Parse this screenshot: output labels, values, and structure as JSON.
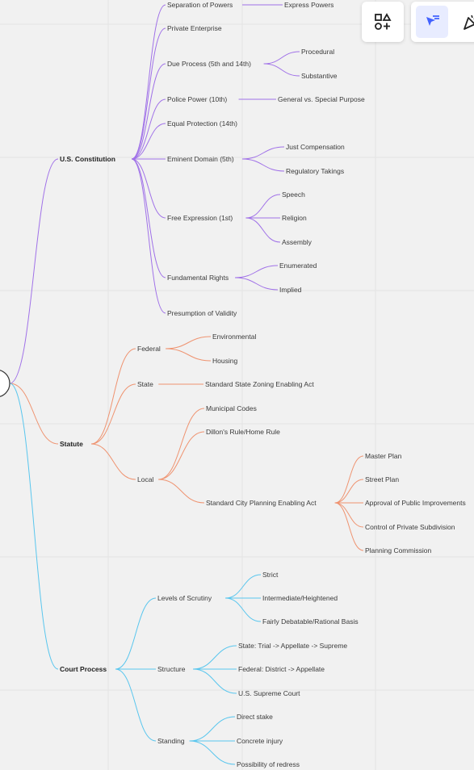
{
  "colors": {
    "constitution": "#a071e8",
    "statute": "#ef9370",
    "court": "#59c6ee",
    "accent": "#4262ff"
  },
  "toolbar": {
    "shapes_icon": "shapes-icon",
    "select_icon": "select-arrow-icon",
    "celebrate_icon": "party-popper-icon"
  },
  "mindmap": {
    "branches": [
      {
        "label": "U.S. Constitution",
        "children": [
          {
            "label": "Separation of Powers",
            "children": [
              "Express Powers"
            ]
          },
          {
            "label": "Private Enterprise",
            "children": []
          },
          {
            "label": "Due Process (5th and 14th)",
            "children": [
              "Procedural",
              "Substantive"
            ]
          },
          {
            "label": "Police Power (10th)",
            "children": [
              "General vs. Special Purpose"
            ]
          },
          {
            "label": "Equal Protection (14th)",
            "children": []
          },
          {
            "label": "Eminent Domain (5th)",
            "children": [
              "Just Compensation",
              "Regulatory Takings"
            ]
          },
          {
            "label": "Free Expression (1st)",
            "children": [
              "Speech",
              "Religion",
              "Assembly"
            ]
          },
          {
            "label": "Fundamental Rights",
            "children": [
              "Enumerated",
              "Implied"
            ]
          },
          {
            "label": "Presumption of Validity",
            "children": []
          }
        ]
      },
      {
        "label": "Statute",
        "children": [
          {
            "label": "Federal",
            "children": [
              "Environmental",
              "Housing"
            ]
          },
          {
            "label": "State",
            "children": [
              "Standard State Zoning Enabling Act"
            ]
          },
          {
            "label": "Local",
            "children": [
              {
                "label": "Municipal Codes",
                "children": []
              },
              {
                "label": "Dillon's Rule/Home Rule",
                "children": []
              },
              {
                "label": "Standard City Planning Enabling Act",
                "children": [
                  "Master Plan",
                  "Street Plan",
                  "Approval of Public Improvements",
                  "Control of Private Subdivision",
                  "Planning Commission"
                ]
              }
            ]
          }
        ]
      },
      {
        "label": "Court Process",
        "children": [
          {
            "label": "Levels of Scrutiny",
            "children": [
              "Strict",
              "Intermediate/Heightened",
              "Fairly Debatable/Rational Basis"
            ]
          },
          {
            "label": "Structure",
            "children": [
              "State: Trial -> Appellate -> Supreme",
              "Federal: District -> Appellate",
              "U.S. Supreme Court"
            ]
          },
          {
            "label": "Standing",
            "children": [
              "Direct stake",
              "Concrete injury",
              "Possibility of redress"
            ]
          }
        ]
      }
    ]
  }
}
